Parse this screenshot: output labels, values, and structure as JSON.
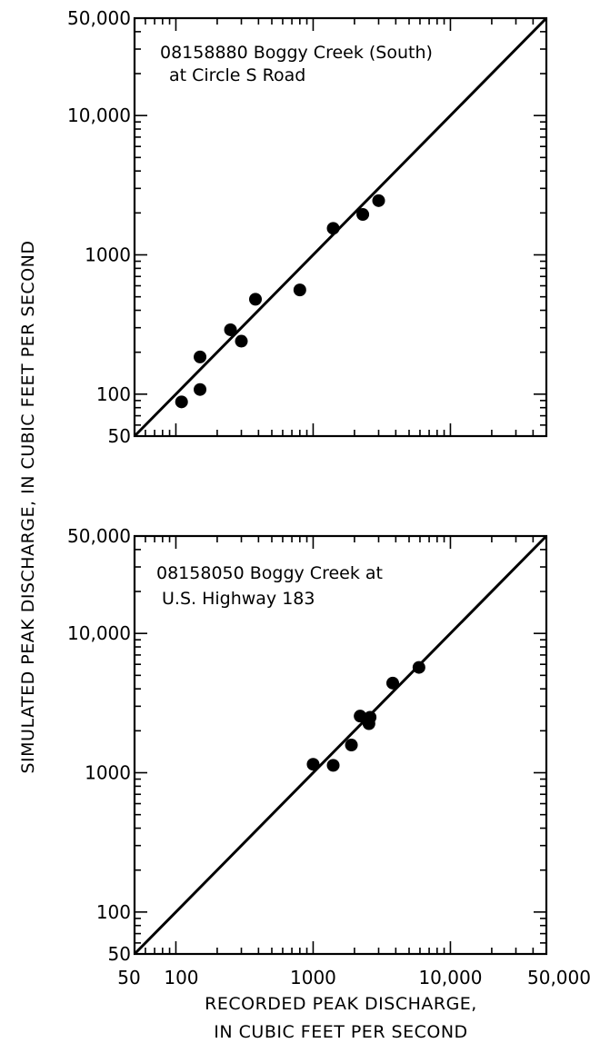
{
  "figure": {
    "ylabel": "SIMULATED PEAK DISCHARGE, IN CUBIC FEET PER SECOND",
    "xlabel_line1": "RECORDED PEAK DISCHARGE,",
    "xlabel_line2": "IN CUBIC FEET PER SECOND"
  },
  "chart_data": [
    {
      "type": "scatter",
      "scale": "log-log",
      "title_line1": "08158880 Boggy Creek (South)",
      "title_line2": "at Circle S Road",
      "xlabel": "",
      "ylabel": "SIMULATED PEAK DISCHARGE, IN CUBIC FEET PER SECOND",
      "xlim": [
        50,
        50000
      ],
      "ylim": [
        50,
        50000
      ],
      "x_tick_labels": [],
      "y_ticks": [
        50,
        100,
        1000,
        10000,
        50000
      ],
      "y_tick_labels": [
        "50",
        "100",
        "1000",
        "10,000",
        "50,000"
      ],
      "reference_line": {
        "type": "line of equality",
        "from": [
          50,
          50
        ],
        "to": [
          50000,
          50000
        ]
      },
      "points": [
        {
          "x": 110,
          "y": 88
        },
        {
          "x": 150,
          "y": 108
        },
        {
          "x": 150,
          "y": 185
        },
        {
          "x": 250,
          "y": 290
        },
        {
          "x": 300,
          "y": 240
        },
        {
          "x": 380,
          "y": 480
        },
        {
          "x": 800,
          "y": 560
        },
        {
          "x": 1400,
          "y": 1550
        },
        {
          "x": 2300,
          "y": 1950
        },
        {
          "x": 3000,
          "y": 2450
        }
      ]
    },
    {
      "type": "scatter",
      "scale": "log-log",
      "title_line1": "08158050 Boggy Creek at",
      "title_line2": "U.S. Highway 183",
      "xlabel": "RECORDED PEAK DISCHARGE, IN CUBIC FEET PER SECOND",
      "ylabel": "SIMULATED PEAK DISCHARGE, IN CUBIC FEET PER SECOND",
      "xlim": [
        50,
        50000
      ],
      "ylim": [
        50,
        50000
      ],
      "x_ticks": [
        50,
        100,
        1000,
        10000,
        50000
      ],
      "x_tick_labels": [
        "50",
        "100",
        "1000",
        "10,000",
        "50,000"
      ],
      "y_ticks": [
        50,
        100,
        1000,
        10000,
        50000
      ],
      "y_tick_labels": [
        "50",
        "100",
        "1000",
        "10,000",
        "50,000"
      ],
      "reference_line": {
        "type": "line of equality",
        "from": [
          50,
          50
        ],
        "to": [
          50000,
          50000
        ]
      },
      "points": [
        {
          "x": 1000,
          "y": 1150
        },
        {
          "x": 1400,
          "y": 1130
        },
        {
          "x": 1900,
          "y": 1580
        },
        {
          "x": 2200,
          "y": 2550
        },
        {
          "x": 2550,
          "y": 2250
        },
        {
          "x": 2600,
          "y": 2500
        },
        {
          "x": 3800,
          "y": 4400
        },
        {
          "x": 5900,
          "y": 5700
        }
      ]
    }
  ]
}
